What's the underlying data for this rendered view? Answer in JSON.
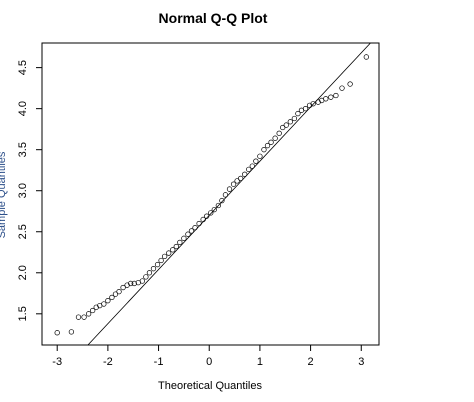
{
  "chart_data": {
    "type": "scatter",
    "title": "Normal Q-Q Plot",
    "xlabel": "Theoretical Quantiles",
    "ylabel": "Sample Quantiles",
    "xlim": [
      -3.3,
      3.35
    ],
    "ylim": [
      1.12,
      4.8
    ],
    "x_ticks": [
      -3,
      -2,
      -1,
      0,
      1,
      2,
      3
    ],
    "x_tick_labels": [
      "-3",
      "-2",
      "-1",
      "0",
      "1",
      "2",
      "3"
    ],
    "y_ticks": [
      1.5,
      2.0,
      2.5,
      3.0,
      3.5,
      4.0,
      4.5
    ],
    "y_tick_labels": [
      "1.5",
      "2.0",
      "2.5",
      "3.0",
      "3.5",
      "4.0",
      "4.5"
    ],
    "grid": false,
    "qq_line": {
      "intercept": 2.7,
      "slope": 0.66
    },
    "points": [
      [
        -3.0,
        1.27
      ],
      [
        -2.72,
        1.28
      ],
      [
        -2.58,
        1.46
      ],
      [
        -2.47,
        1.46
      ],
      [
        -2.38,
        1.5
      ],
      [
        -2.3,
        1.54
      ],
      [
        -2.23,
        1.58
      ],
      [
        -2.16,
        1.6
      ],
      [
        -2.08,
        1.62
      ],
      [
        -2.0,
        1.66
      ],
      [
        -1.92,
        1.7
      ],
      [
        -1.85,
        1.74
      ],
      [
        -1.78,
        1.77
      ],
      [
        -1.7,
        1.82
      ],
      [
        -1.62,
        1.85
      ],
      [
        -1.55,
        1.87
      ],
      [
        -1.48,
        1.87
      ],
      [
        -1.4,
        1.88
      ],
      [
        -1.32,
        1.9
      ],
      [
        -1.25,
        1.95
      ],
      [
        -1.18,
        2.0
      ],
      [
        -1.1,
        2.05
      ],
      [
        -1.02,
        2.1
      ],
      [
        -0.95,
        2.15
      ],
      [
        -0.88,
        2.2
      ],
      [
        -0.8,
        2.24
      ],
      [
        -0.72,
        2.28
      ],
      [
        -0.65,
        2.32
      ],
      [
        -0.58,
        2.37
      ],
      [
        -0.5,
        2.42
      ],
      [
        -0.42,
        2.47
      ],
      [
        -0.35,
        2.51
      ],
      [
        -0.28,
        2.55
      ],
      [
        -0.2,
        2.6
      ],
      [
        -0.12,
        2.65
      ],
      [
        -0.05,
        2.69
      ],
      [
        0.03,
        2.73
      ],
      [
        0.1,
        2.77
      ],
      [
        0.18,
        2.82
      ],
      [
        0.25,
        2.88
      ],
      [
        0.32,
        2.95
      ],
      [
        0.4,
        3.02
      ],
      [
        0.48,
        3.08
      ],
      [
        0.55,
        3.12
      ],
      [
        0.62,
        3.15
      ],
      [
        0.7,
        3.2
      ],
      [
        0.78,
        3.26
      ],
      [
        0.85,
        3.3
      ],
      [
        0.92,
        3.36
      ],
      [
        1.0,
        3.42
      ],
      [
        1.08,
        3.5
      ],
      [
        1.15,
        3.55
      ],
      [
        1.22,
        3.59
      ],
      [
        1.3,
        3.64
      ],
      [
        1.38,
        3.7
      ],
      [
        1.45,
        3.77
      ],
      [
        1.52,
        3.8
      ],
      [
        1.6,
        3.84
      ],
      [
        1.68,
        3.88
      ],
      [
        1.75,
        3.94
      ],
      [
        1.82,
        3.98
      ],
      [
        1.9,
        4.0
      ],
      [
        1.98,
        4.04
      ],
      [
        2.05,
        4.06
      ],
      [
        2.15,
        4.08
      ],
      [
        2.22,
        4.1
      ],
      [
        2.3,
        4.12
      ],
      [
        2.4,
        4.14
      ],
      [
        2.5,
        4.16
      ],
      [
        2.62,
        4.25
      ],
      [
        2.78,
        4.3
      ],
      [
        3.1,
        4.63
      ]
    ]
  }
}
